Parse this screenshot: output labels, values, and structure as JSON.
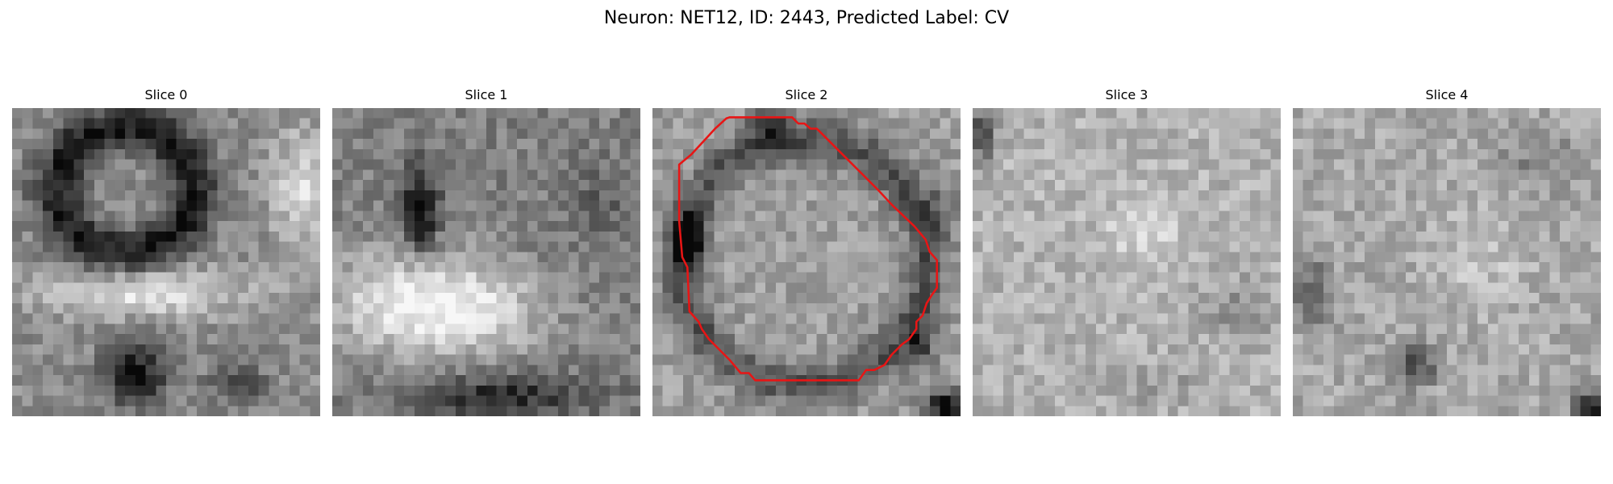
{
  "figure": {
    "title": "Neuron: NET12, ID: 2443, Predicted Label: CV"
  },
  "panels": [
    {
      "title": "Slice 0"
    },
    {
      "title": "Slice 1"
    },
    {
      "title": "Slice 2"
    },
    {
      "title": "Slice 3"
    },
    {
      "title": "Slice 4"
    }
  ],
  "colors": {
    "contour": "#e81515",
    "background": "#ffffff"
  },
  "image": {
    "colormap": "grayscale",
    "grid_size": [
      30,
      30
    ]
  }
}
